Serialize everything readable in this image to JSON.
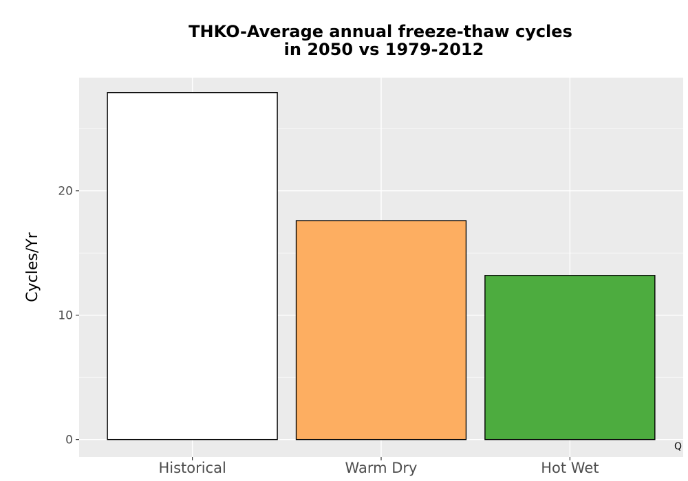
{
  "chart_data": {
    "type": "bar",
    "title_lines": [
      "THKO-Average annual freeze-thaw cycles",
      "in 2050 vs 1979-2012"
    ],
    "xlabel": "",
    "ylabel": "Cycles/Yr",
    "categories": [
      "Historical",
      "Warm Dry",
      "Hot Wet"
    ],
    "values": [
      27.9,
      17.6,
      13.2
    ],
    "bar_colors": [
      "#ffffff",
      "#fdae61",
      "#4dac3f"
    ],
    "bar_outline_color": "#000000",
    "ylim": [
      -1.4,
      29.1
    ],
    "yticks": [
      0,
      10,
      20
    ],
    "ytick_labels": [
      "0",
      "10",
      "20"
    ],
    "grid": true,
    "panel_background": "#ebebeb",
    "grid_color": "#ffffff",
    "corner_note": "Q"
  }
}
